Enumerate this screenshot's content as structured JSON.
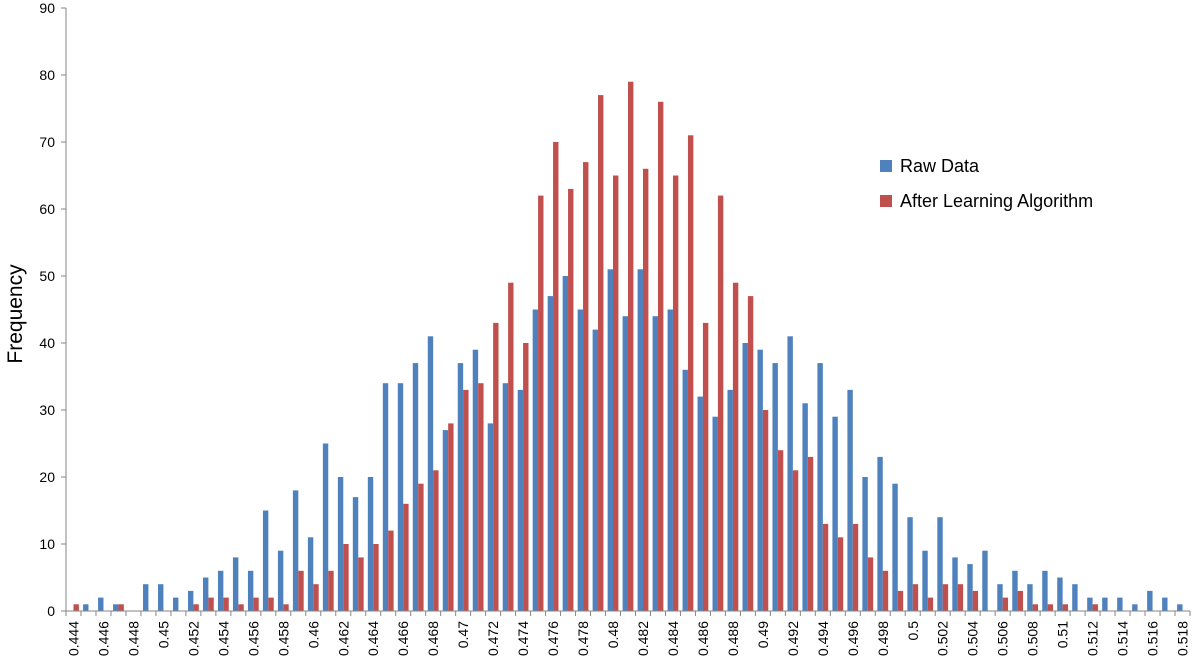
{
  "chart_data": {
    "type": "bar",
    "title": "",
    "xlabel": "",
    "ylabel": "Frequency",
    "ylim": [
      0,
      90
    ],
    "yticks": [
      0,
      10,
      20,
      30,
      40,
      50,
      60,
      70,
      80,
      90
    ],
    "grid": false,
    "legend_position": "right",
    "categories": [
      "0.444",
      "0.445",
      "0.446",
      "0.447",
      "0.448",
      "0.449",
      "0.45",
      "0.451",
      "0.452",
      "0.453",
      "0.454",
      "0.455",
      "0.456",
      "0.457",
      "0.458",
      "0.459",
      "0.46",
      "0.461",
      "0.462",
      "0.463",
      "0.464",
      "0.465",
      "0.466",
      "0.467",
      "0.468",
      "0.469",
      "0.47",
      "0.471",
      "0.472",
      "0.473",
      "0.474",
      "0.475",
      "0.476",
      "0.477",
      "0.478",
      "0.479",
      "0.48",
      "0.481",
      "0.482",
      "0.483",
      "0.484",
      "0.485",
      "0.486",
      "0.487",
      "0.488",
      "0.489",
      "0.49",
      "0.491",
      "0.492",
      "0.493",
      "0.494",
      "0.495",
      "0.496",
      "0.497",
      "0.498",
      "0.499",
      "0.5",
      "0.501",
      "0.502",
      "0.503",
      "0.504",
      "0.505",
      "0.506",
      "0.507",
      "0.508",
      "0.509",
      "0.51",
      "0.511",
      "0.512",
      "0.513",
      "0.514",
      "0.515",
      "0.516",
      "0.517",
      "0.518"
    ],
    "tick_labels": [
      "0.444",
      "",
      "0.446",
      "",
      "0.448",
      "",
      "0.45",
      "",
      "0.452",
      "",
      "0.454",
      "",
      "0.456",
      "",
      "0.458",
      "",
      "0.46",
      "",
      "0.462",
      "",
      "0.464",
      "",
      "0.466",
      "",
      "0.468",
      "",
      "0.47",
      "",
      "0.472",
      "",
      "0.474",
      "",
      "0.476",
      "",
      "0.478",
      "",
      "0.48",
      "",
      "0.482",
      "",
      "0.484",
      "",
      "0.486",
      "",
      "0.488",
      "",
      "0.49",
      "",
      "0.492",
      "",
      "0.494",
      "",
      "0.496",
      "",
      "0.498",
      "",
      "0.5",
      "",
      "0.502",
      "",
      "0.504",
      "",
      "0.506",
      "",
      "0.508",
      "",
      "0.51",
      "",
      "0.512",
      "",
      "0.514",
      "",
      "0.516",
      "",
      "0.518"
    ],
    "series": [
      {
        "name": "Raw Data",
        "color": "#4f81bd",
        "values": [
          0,
          1,
          2,
          1,
          0,
          4,
          4,
          2,
          3,
          5,
          6,
          8,
          6,
          15,
          9,
          18,
          11,
          25,
          20,
          17,
          20,
          34,
          34,
          37,
          41,
          27,
          37,
          39,
          28,
          34,
          33,
          45,
          47,
          50,
          45,
          42,
          51,
          44,
          51,
          44,
          45,
          36,
          32,
          29,
          33,
          40,
          39,
          37,
          41,
          31,
          37,
          29,
          33,
          20,
          23,
          19,
          14,
          9,
          14,
          8,
          7,
          9,
          4,
          6,
          4,
          6,
          5,
          4,
          2,
          2,
          2,
          1,
          3,
          2,
          1
        ]
      },
      {
        "name": "After Learning Algorithm",
        "color": "#c0504d",
        "values": [
          1,
          0,
          0,
          1,
          0,
          0,
          0,
          0,
          1,
          2,
          2,
          1,
          2,
          2,
          1,
          6,
          4,
          6,
          10,
          8,
          10,
          12,
          16,
          19,
          21,
          28,
          33,
          34,
          43,
          49,
          40,
          62,
          70,
          63,
          67,
          77,
          65,
          79,
          66,
          76,
          65,
          71,
          43,
          62,
          49,
          47,
          30,
          24,
          21,
          23,
          13,
          11,
          13,
          8,
          6,
          3,
          4,
          2,
          4,
          4,
          3,
          0,
          2,
          3,
          1,
          1,
          1,
          0,
          1,
          0,
          0,
          0,
          0,
          0,
          0
        ]
      }
    ]
  }
}
